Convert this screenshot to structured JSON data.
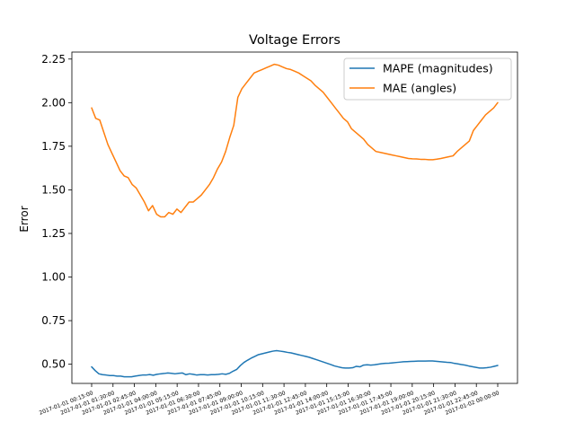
{
  "chart_data": {
    "type": "line",
    "title": "Voltage Errors",
    "xlabel": "",
    "ylabel": "Error",
    "ylim": [
      0.39,
      2.29
    ],
    "yticks": [
      0.5,
      0.75,
      1.0,
      1.25,
      1.5,
      1.75,
      2.0,
      2.25
    ],
    "ytick_labels": [
      "0.50",
      "0.75",
      "1.00",
      "1.25",
      "1.50",
      "1.75",
      "2.00",
      "2.25"
    ],
    "xticks": [
      "2017-01-01 00:15:00",
      "2017-01-01 01:30:00",
      "2017-01-01 02:45:00",
      "2017-01-01 04:00:00",
      "2017-01-01 05:15:00",
      "2017-01-01 06:30:00",
      "2017-01-01 07:45:00",
      "2017-01-01 09:00:00",
      "2017-01-01 10:15:00",
      "2017-01-01 11:30:00",
      "2017-01-01 12:45:00",
      "2017-01-01 14:00:00",
      "2017-01-01 15:15:00",
      "2017-01-01 16:30:00",
      "2017-01-01 17:45:00",
      "2017-01-01 19:00:00",
      "2017-01-01 20:15:00",
      "2017-01-01 21:30:00",
      "2017-01-01 22:45:00",
      "2017-01-02 00:00:00"
    ],
    "legend": "top-right",
    "grid": false,
    "series": [
      {
        "name": "MAPE (magnitudes)",
        "color": "#1f77b4",
        "values": [
          0.485,
          0.463,
          0.445,
          0.44,
          0.438,
          0.435,
          0.435,
          0.432,
          0.432,
          0.428,
          0.428,
          0.428,
          0.432,
          0.435,
          0.438,
          0.438,
          0.441,
          0.437,
          0.442,
          0.445,
          0.447,
          0.45,
          0.448,
          0.445,
          0.448,
          0.45,
          0.44,
          0.445,
          0.442,
          0.438,
          0.44,
          0.44,
          0.438,
          0.44,
          0.44,
          0.442,
          0.445,
          0.442,
          0.448,
          0.46,
          0.47,
          0.492,
          0.51,
          0.523,
          0.535,
          0.545,
          0.555,
          0.56,
          0.565,
          0.57,
          0.575,
          0.578,
          0.575,
          0.572,
          0.568,
          0.565,
          0.56,
          0.555,
          0.55,
          0.545,
          0.54,
          0.533,
          0.526,
          0.519,
          0.512,
          0.505,
          0.498,
          0.49,
          0.485,
          0.48,
          0.478,
          0.478,
          0.48,
          0.488,
          0.485,
          0.495,
          0.497,
          0.495,
          0.497,
          0.5,
          0.503,
          0.505,
          0.506,
          0.508,
          0.51,
          0.512,
          0.514,
          0.515,
          0.516,
          0.517,
          0.518,
          0.518,
          0.518,
          0.519,
          0.519,
          0.517,
          0.515,
          0.513,
          0.511,
          0.51,
          0.505,
          0.502,
          0.498,
          0.495,
          0.49,
          0.486,
          0.482,
          0.478,
          0.478,
          0.48,
          0.483,
          0.488,
          0.493
        ]
      },
      {
        "name": "MAE (angles)",
        "color": "#ff7f0e",
        "values": [
          1.97,
          1.91,
          1.9,
          1.83,
          1.76,
          1.71,
          1.66,
          1.61,
          1.58,
          1.57,
          1.53,
          1.51,
          1.47,
          1.43,
          1.38,
          1.41,
          1.36,
          1.345,
          1.345,
          1.37,
          1.36,
          1.39,
          1.37,
          1.4,
          1.43,
          1.43,
          1.45,
          1.47,
          1.5,
          1.53,
          1.57,
          1.62,
          1.66,
          1.72,
          1.8,
          1.87,
          2.03,
          2.08,
          2.11,
          2.14,
          2.17,
          2.18,
          2.19,
          2.2,
          2.21,
          2.22,
          2.215,
          2.205,
          2.195,
          2.19,
          2.18,
          2.17,
          2.155,
          2.14,
          2.125,
          2.1,
          2.08,
          2.06,
          2.03,
          2.0,
          1.97,
          1.94,
          1.91,
          1.89,
          1.85,
          1.83,
          1.81,
          1.79,
          1.76,
          1.74,
          1.72,
          1.715,
          1.71,
          1.705,
          1.7,
          1.695,
          1.69,
          1.685,
          1.68,
          1.678,
          1.677,
          1.675,
          1.675,
          1.673,
          1.673,
          1.676,
          1.68,
          1.685,
          1.69,
          1.695,
          1.72,
          1.74,
          1.76,
          1.78,
          1.84,
          1.87,
          1.9,
          1.93,
          1.95,
          1.97,
          2.0
        ]
      }
    ]
  }
}
